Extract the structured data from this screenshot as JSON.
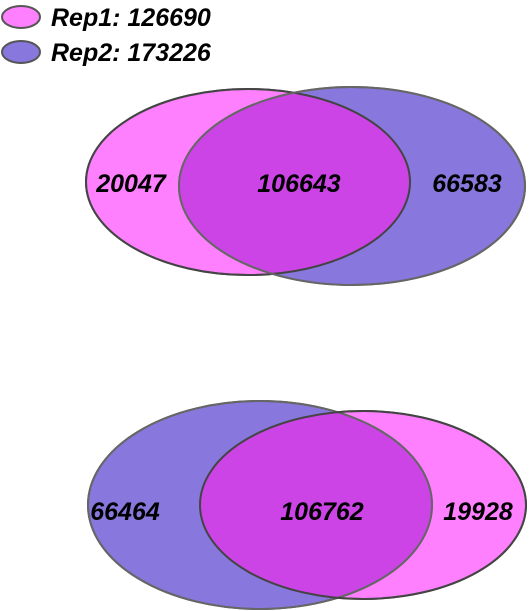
{
  "legend": [
    {
      "label": "Rep1: 126690",
      "color": "#ff80ff"
    },
    {
      "label": "Rep2: 173226",
      "color": "#8877dd"
    }
  ],
  "venn": [
    {
      "left_only": "20047",
      "overlap": "106643",
      "right_only": "66583",
      "left_color": "#ff80ff",
      "right_color": "#8877dd",
      "overlap_color": "#cc44e6"
    },
    {
      "left_only": "66464",
      "overlap": "106762",
      "right_only": "19928",
      "left_color": "#8877dd",
      "right_color": "#ff80ff",
      "overlap_color": "#cc44e6"
    }
  ]
}
